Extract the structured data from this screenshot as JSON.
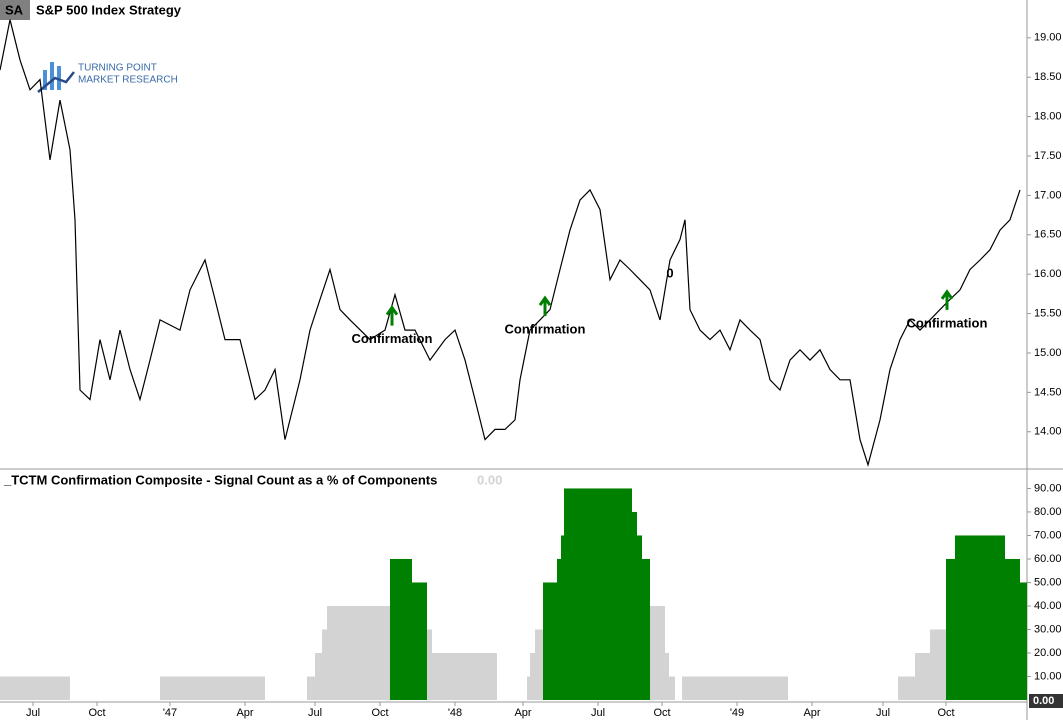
{
  "header": {
    "symbol": "SA",
    "title": "S&P 500 Index  Strategy",
    "logo_line1": "TURNING POINT",
    "logo_line2": "MARKET RESEARCH"
  },
  "chart_data": [
    {
      "type": "line",
      "color": "#000000",
      "x": [
        0,
        2,
        4,
        6,
        8,
        10,
        12,
        14,
        15,
        16,
        18,
        20,
        22,
        24,
        26,
        28,
        30,
        32,
        36,
        38,
        41,
        43,
        45,
        48,
        51,
        53,
        55,
        57,
        60,
        62,
        64,
        66,
        68,
        70,
        74,
        77,
        79,
        81,
        83,
        86,
        89,
        91,
        93,
        95,
        97,
        99,
        101,
        103,
        104,
        106,
        108,
        110,
        112,
        114,
        116,
        118,
        120,
        122,
        124,
        126,
        128,
        130,
        132,
        134,
        136,
        137,
        138,
        140,
        142,
        144,
        146,
        148,
        150,
        152,
        154,
        156,
        158,
        160,
        162,
        164,
        166,
        168,
        170,
        172,
        173.6,
        176,
        178,
        180,
        182,
        184,
        186,
        188,
        190,
        192,
        194,
        196,
        198,
        200,
        202,
        204
      ],
      "values": [
        18.59,
        19.23,
        18.72,
        18.34,
        18.47,
        17.45,
        18.21,
        17.58,
        16.69,
        14.53,
        14.41,
        15.17,
        14.66,
        15.29,
        14.79,
        14.41,
        14.91,
        15.42,
        15.29,
        15.8,
        16.18,
        15.68,
        15.17,
        15.17,
        14.41,
        14.53,
        14.79,
        13.9,
        14.66,
        15.29,
        15.68,
        16.06,
        15.55,
        15.42,
        15.17,
        15.29,
        15.74,
        15.29,
        15.29,
        14.91,
        15.17,
        15.29,
        14.91,
        14.41,
        13.9,
        14.03,
        14.03,
        14.15,
        14.66,
        15.29,
        15.42,
        15.55,
        16.06,
        16.56,
        16.94,
        17.07,
        16.82,
        15.93,
        16.18,
        16.06,
        15.93,
        15.8,
        15.42,
        16.18,
        16.44,
        16.69,
        15.55,
        15.29,
        15.17,
        15.29,
        15.04,
        15.42,
        15.29,
        15.17,
        14.66,
        14.53,
        14.91,
        15.04,
        14.91,
        15.04,
        14.79,
        14.66,
        14.66,
        13.9,
        13.58,
        14.15,
        14.79,
        15.17,
        15.42,
        15.29,
        15.42,
        15.55,
        15.68,
        15.8,
        16.06,
        16.18,
        16.31,
        16.56,
        16.69,
        17.07
      ],
      "xlim": [
        0,
        205.4
      ],
      "ylim": [
        13.54,
        19.48
      ],
      "xticks": [
        {
          "value": 6.6,
          "label": "Jul"
        },
        {
          "value": 19.4,
          "label": "Oct"
        },
        {
          "value": 34,
          "label": "'47"
        },
        {
          "value": 49,
          "label": "Apr"
        },
        {
          "value": 63,
          "label": "Jul"
        },
        {
          "value": 76,
          "label": "Oct"
        },
        {
          "value": 91,
          "label": "'48"
        },
        {
          "value": 104.6,
          "label": "Apr"
        },
        {
          "value": 119.6,
          "label": "Jul"
        },
        {
          "value": 132.4,
          "label": "Oct"
        },
        {
          "value": 147.4,
          "label": "'49"
        },
        {
          "value": 162.4,
          "label": "Apr"
        },
        {
          "value": 176.6,
          "label": "Jul"
        },
        {
          "value": 189.2,
          "label": "Oct"
        }
      ],
      "yticks": [
        {
          "value": 14,
          "label": "14.00"
        },
        {
          "value": 14.5,
          "label": "14.50"
        },
        {
          "value": 15,
          "label": "15.00"
        },
        {
          "value": 15.5,
          "label": "15.50"
        },
        {
          "value": 16,
          "label": "16.00"
        },
        {
          "value": 16.5,
          "label": "16.50"
        },
        {
          "value": 17,
          "label": "17.00"
        },
        {
          "value": 17.5,
          "label": "17.50"
        },
        {
          "value": 18,
          "label": "18.00"
        },
        {
          "value": 18.5,
          "label": "18.50"
        },
        {
          "value": 19,
          "label": "19.00"
        }
      ],
      "annotations": [
        {
          "text": "Confirmation",
          "x": 78.4,
          "y": 15.5
        },
        {
          "text": "Confirmation",
          "x": 109,
          "y": 15.62
        },
        {
          "text": "0",
          "x": 134,
          "y": 16.0
        },
        {
          "text": "Confirmation",
          "x": 189.4,
          "y": 15.7
        }
      ],
      "arrow_color": "#008000"
    },
    {
      "type": "histogram",
      "title": "_TCTM Confirmation Composite - Signal Count as a % of Components",
      "value_label": "0.00",
      "bins": [
        0,
        14,
        32,
        53,
        61.4,
        63,
        64.4,
        65.4,
        78,
        82.4,
        85.4,
        86.4,
        99.4,
        105.4,
        106,
        107,
        108.6,
        111.4,
        112.2,
        112.8,
        126.4,
        127.4,
        128.4,
        130,
        133,
        133.8,
        135,
        136.4,
        157.6,
        179.6,
        183,
        186,
        189.2,
        191,
        201,
        204,
        205.4
      ],
      "values": [
        10,
        0,
        10,
        0,
        10,
        20,
        30,
        40,
        60,
        50,
        30,
        20,
        0,
        10,
        20,
        30,
        50,
        60,
        70,
        90,
        80,
        70,
        60,
        40,
        20,
        10,
        0,
        10,
        0,
        10,
        20,
        30,
        60,
        70,
        60,
        50
      ],
      "colors": [
        "#d3d3d3",
        "#d3d3d3",
        "#d3d3d3",
        "#d3d3d3",
        "#d3d3d3",
        "#d3d3d3",
        "#d3d3d3",
        "#d3d3d3",
        "#008000",
        "#008000",
        "#d3d3d3",
        "#d3d3d3",
        "#d3d3d3",
        "#d3d3d3",
        "#d3d3d3",
        "#d3d3d3",
        "#008000",
        "#008000",
        "#008000",
        "#008000",
        "#008000",
        "#008000",
        "#008000",
        "#d3d3d3",
        "#d3d3d3",
        "#d3d3d3",
        "#d3d3d3",
        "#d3d3d3",
        "#d3d3d3",
        "#d3d3d3",
        "#d3d3d3",
        "#d3d3d3",
        "#008000",
        "#008000",
        "#008000",
        "#008000"
      ],
      "xlim": [
        0,
        205.4
      ],
      "ylim": [
        0,
        97
      ],
      "yticks": [
        {
          "value": 10,
          "label": "10.00"
        },
        {
          "value": 20,
          "label": "20.00"
        },
        {
          "value": 30,
          "label": "30.00"
        },
        {
          "value": 40,
          "label": "40.00"
        },
        {
          "value": 50,
          "label": "50.00"
        },
        {
          "value": 60,
          "label": "60.00"
        },
        {
          "value": 70,
          "label": "70.00"
        },
        {
          "value": 80,
          "label": "80.00"
        },
        {
          "value": 90,
          "label": "90.00"
        }
      ]
    }
  ]
}
